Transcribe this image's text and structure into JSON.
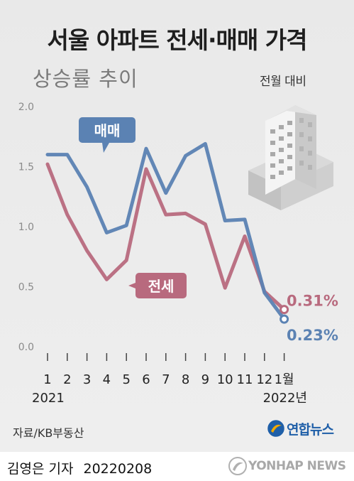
{
  "title": "서울 아파트 전세·매매 가격",
  "subtitle": "상승률 추이",
  "unit_label": "전월 대비",
  "source": "자료/KB부동산",
  "agency_logo": "연합뉴스",
  "byline": {
    "reporter": "김영은 기자",
    "date": "20220208"
  },
  "watermark": "YONHAP NEWS",
  "chart_data": {
    "type": "line",
    "title": "서울 아파트 전세·매매 가격 상승률 추이",
    "ylabel": "",
    "xlabel": "",
    "categories": [
      "1",
      "2",
      "3",
      "4",
      "5",
      "6",
      "7",
      "8",
      "9",
      "10",
      "11",
      "12",
      "1월"
    ],
    "year_labels": [
      {
        "text": "2021",
        "at": 0
      },
      {
        "text": "2022년",
        "at": 12
      }
    ],
    "y_ticks": [
      "0.0",
      "0.5",
      "1.0",
      "1.5",
      "2.0"
    ],
    "ylim": [
      0,
      2.0
    ],
    "grid": false,
    "series": [
      {
        "name": "매매",
        "color": "#5b82b3",
        "values": [
          1.6,
          1.6,
          1.33,
          0.95,
          1.01,
          1.65,
          1.28,
          1.59,
          1.69,
          1.05,
          1.06,
          0.45,
          0.23
        ],
        "end_label": "0.23%"
      },
      {
        "name": "전세",
        "color": "#b86a7e",
        "values": [
          1.52,
          1.1,
          0.8,
          0.56,
          0.72,
          1.48,
          1.1,
          1.11,
          1.02,
          0.49,
          0.92,
          0.46,
          0.31
        ],
        "end_label": "0.31%"
      }
    ],
    "legend": "inline callouts"
  }
}
